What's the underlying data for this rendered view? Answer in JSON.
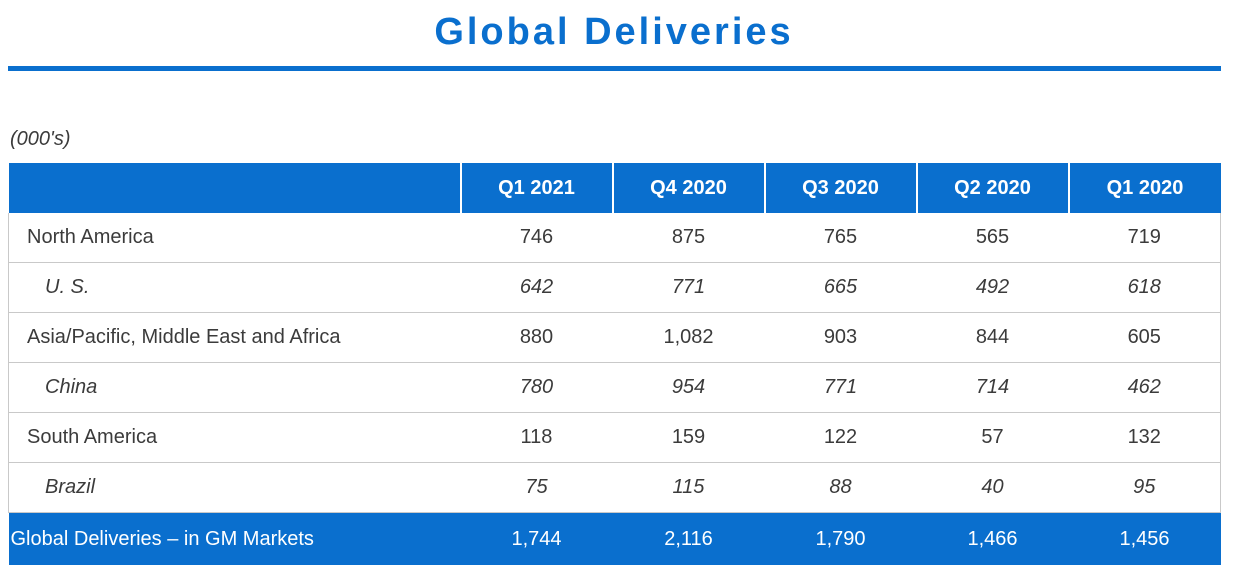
{
  "title": "Global Deliveries",
  "units": "(000's)",
  "columns": [
    "",
    "Q1 2021",
    "Q4 2020",
    "Q3 2020",
    "Q2 2020",
    "Q1 2020"
  ],
  "rows": [
    {
      "label": "North America",
      "values": [
        "746",
        "875",
        "765",
        "565",
        "719"
      ]
    },
    {
      "label": "U. S.",
      "values": [
        "642",
        "771",
        "665",
        "492",
        "618"
      ]
    },
    {
      "label": "Asia/Pacific, Middle East and Africa",
      "values": [
        "880",
        "1,082",
        "903",
        "844",
        "605"
      ]
    },
    {
      "label": "China",
      "values": [
        "780",
        "954",
        "771",
        "714",
        "462"
      ]
    },
    {
      "label": "South America",
      "values": [
        "118",
        "159",
        "122",
        "57",
        "132"
      ]
    },
    {
      "label": "Brazil",
      "values": [
        "75",
        "115",
        "88",
        "40",
        "95"
      ]
    }
  ],
  "total": {
    "label": "Global Deliveries – in GM Markets",
    "values": [
      "1,744",
      "2,116",
      "1,790",
      "1,466",
      "1,456"
    ]
  },
  "colors": {
    "accent": "#0a6fce",
    "text": "#3b3b3b",
    "border": "#c9c9c9"
  }
}
